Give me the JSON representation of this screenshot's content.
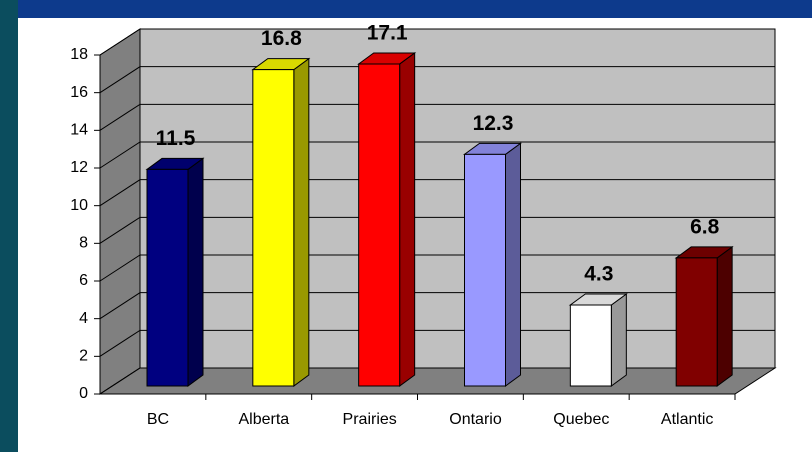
{
  "chart_data": {
    "type": "bar3d",
    "categories": [
      "BC",
      "Alberta",
      "Prairies",
      "Ontario",
      "Quebec",
      "Atlantic"
    ],
    "values": [
      11.5,
      16.8,
      17.1,
      12.3,
      4.3,
      6.8
    ],
    "colors": [
      "#000080",
      "#ffff00",
      "#ff0000",
      "#9999ff",
      "#ffffff",
      "#800000"
    ],
    "ylim": [
      0,
      18
    ],
    "yticks": [
      0,
      2,
      4,
      6,
      8,
      10,
      12,
      14,
      16,
      18
    ],
    "grid": true
  }
}
